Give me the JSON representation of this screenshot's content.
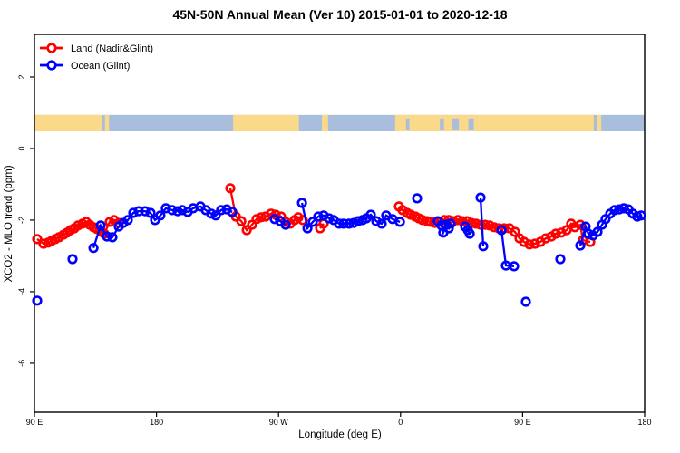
{
  "title": "45N-50N Annual Mean (Ver 10)   2015-01-01 to 2020-12-18",
  "legend": {
    "items": [
      {
        "label": "Land (Nadir&Glint)",
        "color": "#ff0000"
      },
      {
        "label": "Ocean (Glint)",
        "color": "#0000ff"
      }
    ]
  },
  "chart_data": {
    "type": "scatter",
    "title": "45N-50N Annual Mean (Ver 10)   2015-01-01 to 2020-12-18",
    "xlabel": "Longitude (deg E)",
    "ylabel": "XCO2 - MLO trend (ppm)",
    "x_axis_note": "longitude unwrapped along axis: 90E -> 180 -> 90W -> 0 -> 90E -> 180, expressed as 90..540 deg",
    "xlim": [
      90,
      540
    ],
    "ylim": [
      -7.37,
      3.19
    ],
    "grid": false,
    "legend_position": "top-left",
    "x_ticks": [
      {
        "pos": 90,
        "label": "90 E"
      },
      {
        "pos": 180,
        "label": "180"
      },
      {
        "pos": 270,
        "label": "90 W"
      },
      {
        "pos": 360,
        "label": "0"
      },
      {
        "pos": 450,
        "label": "90 E"
      },
      {
        "pos": 540,
        "label": "180"
      }
    ],
    "y_ticks": [
      {
        "pos": 2,
        "label": "2"
      },
      {
        "pos": 0,
        "label": "0"
      },
      {
        "pos": -2,
        "label": "-2"
      },
      {
        "pos": -4,
        "label": "-4"
      },
      {
        "pos": -6,
        "label": "-6"
      }
    ],
    "connect_gap_max_deg": 7.5,
    "map_strip": {
      "value_range": [
        0.48,
        0.94
      ],
      "ocean_color": "#a9bedd",
      "land_color": "#fbd98a",
      "land_segments": [
        [
          90,
          140
        ],
        [
          142,
          145
        ],
        [
          236.5,
          285
        ],
        [
          302,
          306.5
        ],
        [
          356,
          502.5
        ],
        [
          505,
          508
        ]
      ],
      "ocean_specks": [
        [
          364,
          366.5
        ],
        [
          389,
          392
        ],
        [
          398,
          403
        ],
        [
          410,
          414
        ]
      ]
    },
    "series": [
      {
        "name": "Land (Nadir&Glint)",
        "color": "#ff0000",
        "points": [
          [
            92.0,
            -2.53
          ],
          [
            96.7,
            -2.66
          ],
          [
            100.0,
            -2.63
          ],
          [
            102.7,
            -2.58
          ],
          [
            105.4,
            -2.53
          ],
          [
            108.1,
            -2.48
          ],
          [
            111.4,
            -2.41
          ],
          [
            114.1,
            -2.35
          ],
          [
            116.7,
            -2.28
          ],
          [
            119.4,
            -2.23
          ],
          [
            122.1,
            -2.15
          ],
          [
            125.4,
            -2.1
          ],
          [
            128.1,
            -2.05
          ],
          [
            130.8,
            -2.13
          ],
          [
            133.5,
            -2.2
          ],
          [
            136.1,
            -2.25
          ],
          [
            138.8,
            -2.3
          ],
          [
            141.5,
            -2.38
          ],
          [
            145.5,
            -2.05
          ],
          [
            148.8,
            -2.0
          ],
          [
            152.2,
            -2.08
          ],
          [
            234.4,
            -1.11
          ],
          [
            238.5,
            -1.9
          ],
          [
            242.5,
            -2.03
          ],
          [
            246.5,
            -2.28
          ],
          [
            250.5,
            -2.13
          ],
          [
            253.8,
            -1.97
          ],
          [
            257.2,
            -1.92
          ],
          [
            260.5,
            -1.9
          ],
          [
            264.5,
            -1.82
          ],
          [
            267.9,
            -1.85
          ],
          [
            271.9,
            -1.9
          ],
          [
            275.2,
            -2.05
          ],
          [
            278.6,
            -2.1
          ],
          [
            281.9,
            -2.0
          ],
          [
            284.6,
            -1.92
          ],
          [
            287.9,
            -2.0
          ],
          [
            300.6,
            -2.23
          ],
          [
            303.3,
            -2.1
          ],
          [
            358.8,
            -1.62
          ],
          [
            361.5,
            -1.72
          ],
          [
            364.8,
            -1.8
          ],
          [
            367.5,
            -1.85
          ],
          [
            370.8,
            -1.9
          ],
          [
            373.5,
            -1.95
          ],
          [
            376.2,
            -2.0
          ],
          [
            379.5,
            -2.03
          ],
          [
            382.2,
            -2.05
          ],
          [
            385.5,
            -2.08
          ],
          [
            388.9,
            -2.05
          ],
          [
            392.2,
            -2.0
          ],
          [
            395.6,
            -2.0
          ],
          [
            398.9,
            -2.03
          ],
          [
            402.3,
            -2.0
          ],
          [
            405.6,
            -2.03
          ],
          [
            409.0,
            -2.03
          ],
          [
            412.3,
            -2.08
          ],
          [
            415.6,
            -2.1
          ],
          [
            419.0,
            -2.13
          ],
          [
            422.3,
            -2.13
          ],
          [
            425.7,
            -2.15
          ],
          [
            429.0,
            -2.2
          ],
          [
            432.4,
            -2.23
          ],
          [
            436.4,
            -2.23
          ],
          [
            440.4,
            -2.23
          ],
          [
            444.4,
            -2.33
          ],
          [
            447.7,
            -2.51
          ],
          [
            451.1,
            -2.61
          ],
          [
            455.1,
            -2.68
          ],
          [
            459.1,
            -2.66
          ],
          [
            463.1,
            -2.61
          ],
          [
            467.1,
            -2.51
          ],
          [
            471.1,
            -2.46
          ],
          [
            474.5,
            -2.38
          ],
          [
            478.5,
            -2.35
          ],
          [
            482.5,
            -2.28
          ],
          [
            485.8,
            -2.1
          ],
          [
            488.5,
            -2.2
          ],
          [
            492.5,
            -2.13
          ],
          [
            494.5,
            -2.56
          ],
          [
            499.9,
            -2.61
          ]
        ]
      },
      {
        "name": "Ocean (Glint)",
        "color": "#0000ff",
        "points": [
          [
            92.0,
            -4.25
          ],
          [
            118.1,
            -3.09
          ],
          [
            133.5,
            -2.78
          ],
          [
            138.8,
            -2.15
          ],
          [
            143.5,
            -2.46
          ],
          [
            147.5,
            -2.48
          ],
          [
            152.2,
            -2.18
          ],
          [
            155.5,
            -2.08
          ],
          [
            158.9,
            -2.0
          ],
          [
            162.9,
            -1.8
          ],
          [
            166.9,
            -1.75
          ],
          [
            171.6,
            -1.75
          ],
          [
            175.6,
            -1.8
          ],
          [
            178.9,
            -2.0
          ],
          [
            182.9,
            -1.87
          ],
          [
            186.9,
            -1.67
          ],
          [
            191.6,
            -1.72
          ],
          [
            195.6,
            -1.75
          ],
          [
            199.0,
            -1.72
          ],
          [
            203.0,
            -1.77
          ],
          [
            207.0,
            -1.67
          ],
          [
            212.4,
            -1.62
          ],
          [
            216.4,
            -1.72
          ],
          [
            220.4,
            -1.82
          ],
          [
            223.7,
            -1.87
          ],
          [
            227.7,
            -1.72
          ],
          [
            231.8,
            -1.7
          ],
          [
            235.8,
            -1.77
          ],
          [
            267.2,
            -1.97
          ],
          [
            271.2,
            -2.03
          ],
          [
            275.2,
            -2.13
          ],
          [
            287.3,
            -1.52
          ],
          [
            291.3,
            -2.23
          ],
          [
            295.3,
            -2.05
          ],
          [
            299.3,
            -1.9
          ],
          [
            303.3,
            -1.87
          ],
          [
            307.3,
            -1.95
          ],
          [
            310.7,
            -2.0
          ],
          [
            314.7,
            -2.1
          ],
          [
            318.0,
            -2.1
          ],
          [
            322.0,
            -2.1
          ],
          [
            325.4,
            -2.08
          ],
          [
            328.7,
            -2.03
          ],
          [
            332.0,
            -2.0
          ],
          [
            334.7,
            -1.95
          ],
          [
            338.1,
            -1.85
          ],
          [
            342.1,
            -2.03
          ],
          [
            346.1,
            -2.1
          ],
          [
            349.4,
            -1.87
          ],
          [
            354.1,
            -1.97
          ],
          [
            359.5,
            -2.05
          ],
          [
            372.2,
            -1.39
          ],
          [
            387.5,
            -2.03
          ],
          [
            390.2,
            -2.15
          ],
          [
            391.5,
            -2.35
          ],
          [
            393.5,
            -2.13
          ],
          [
            395.6,
            -2.23
          ],
          [
            396.9,
            -2.1
          ],
          [
            407.6,
            -2.18
          ],
          [
            409.6,
            -2.28
          ],
          [
            411.0,
            -2.38
          ],
          [
            419.0,
            -1.37
          ],
          [
            421.0,
            -2.73
          ],
          [
            434.4,
            -2.28
          ],
          [
            437.7,
            -3.27
          ],
          [
            443.7,
            -3.29
          ],
          [
            452.4,
            -4.28
          ],
          [
            477.8,
            -3.09
          ],
          [
            492.5,
            -2.71
          ],
          [
            496.5,
            -2.18
          ],
          [
            498.5,
            -2.38
          ],
          [
            501.9,
            -2.43
          ],
          [
            505.2,
            -2.33
          ],
          [
            508.6,
            -2.13
          ],
          [
            511.2,
            -1.97
          ],
          [
            514.6,
            -1.82
          ],
          [
            517.9,
            -1.72
          ],
          [
            521.3,
            -1.7
          ],
          [
            524.6,
            -1.67
          ],
          [
            528.0,
            -1.7
          ],
          [
            531.3,
            -1.82
          ],
          [
            534.6,
            -1.9
          ],
          [
            537.3,
            -1.87
          ]
        ]
      }
    ]
  }
}
